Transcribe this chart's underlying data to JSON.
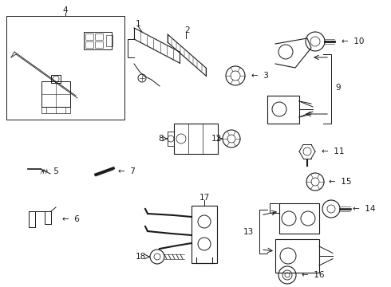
{
  "bg_color": "#ffffff",
  "line_color": "#1a1a1a",
  "figsize": [
    4.9,
    3.6
  ],
  "dpi": 100,
  "label_fontsize": 7.5
}
